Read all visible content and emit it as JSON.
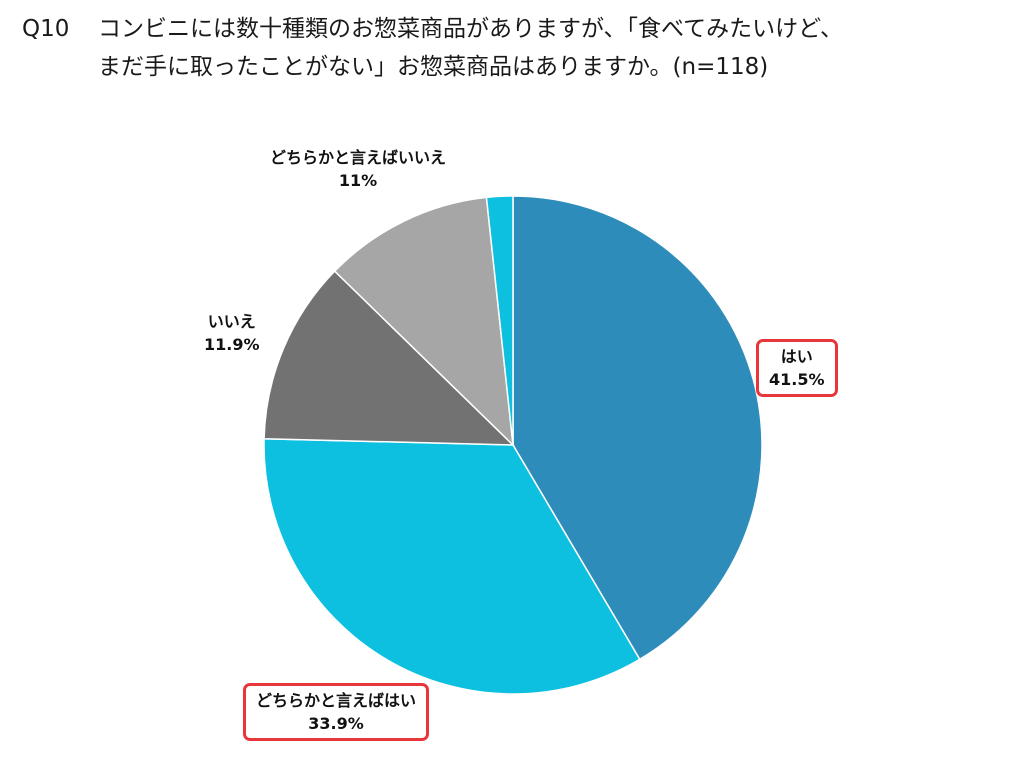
{
  "question": {
    "number": "Q10",
    "line1": "コンビニには数十種類のお惣菜商品がありますが、「食べてみたいけど、",
    "line2": "まだ手に取ったことがない」お惣菜商品はありますか。(n=118)"
  },
  "chart_data": {
    "type": "pie",
    "title": "",
    "start_angle_deg": 0,
    "direction": "clockwise",
    "slices": [
      {
        "label": "はい",
        "value": 41.5,
        "value_text": "41.5%",
        "color": "#2e8cba",
        "highlighted": true
      },
      {
        "label": "どちらかと言えばはい",
        "value": 33.9,
        "value_text": "33.9%",
        "color": "#0dc0e0",
        "highlighted": true
      },
      {
        "label": "いいえ",
        "value": 11.9,
        "value_text": "11.9%",
        "color": "#727272",
        "highlighted": false
      },
      {
        "label": "どちらかと言えばいいえ",
        "value": 11.0,
        "value_text": "11%",
        "color": "#a6a6a6",
        "highlighted": false
      },
      {
        "label": "",
        "value": 1.7,
        "value_text": "",
        "color": "#0dc0e0",
        "highlighted": false
      }
    ],
    "highlight_border_color": "#e8373a"
  }
}
